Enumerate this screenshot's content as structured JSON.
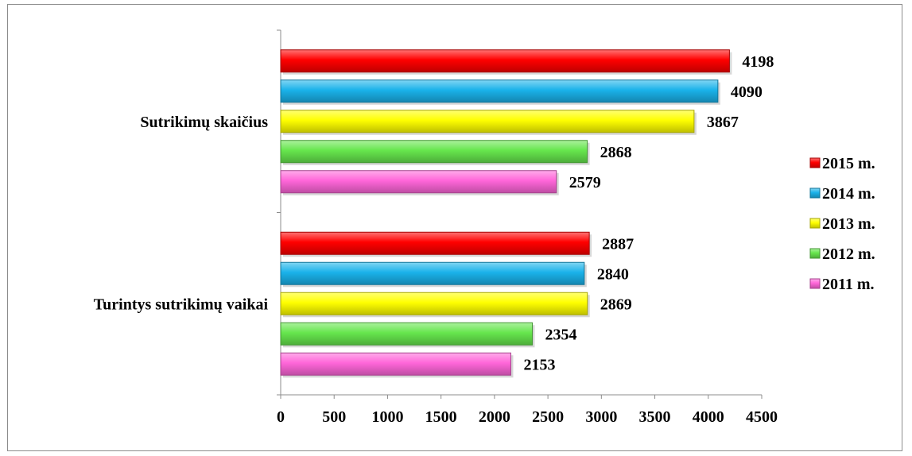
{
  "chart_data": {
    "type": "bar",
    "orientation": "horizontal",
    "categories": [
      "Sutrikimų skaičius",
      "Turintys sutrikimų vaikai"
    ],
    "series": [
      {
        "name": "2015 m.",
        "color": "#ff0000",
        "values": [
          4198,
          2887
        ]
      },
      {
        "name": "2014 m.",
        "color": "#1ab2ea",
        "values": [
          4090,
          2840
        ]
      },
      {
        "name": "2013 m.",
        "color": "#ffff00",
        "values": [
          3867,
          2869
        ]
      },
      {
        "name": "2012 m.",
        "color": "#66e64d",
        "values": [
          2868,
          2354
        ]
      },
      {
        "name": "2011 m.",
        "color": "#ff66d9",
        "values": [
          2579,
          2153
        ]
      }
    ],
    "xlim": [
      0,
      4500
    ],
    "x_ticks": [
      "0",
      "500",
      "1000",
      "1500",
      "2000",
      "2500",
      "3000",
      "3500",
      "4000",
      "4500"
    ],
    "title": "",
    "xlabel": "",
    "ylabel": "",
    "grid": false,
    "data_labels": true,
    "legend_position": "right"
  }
}
